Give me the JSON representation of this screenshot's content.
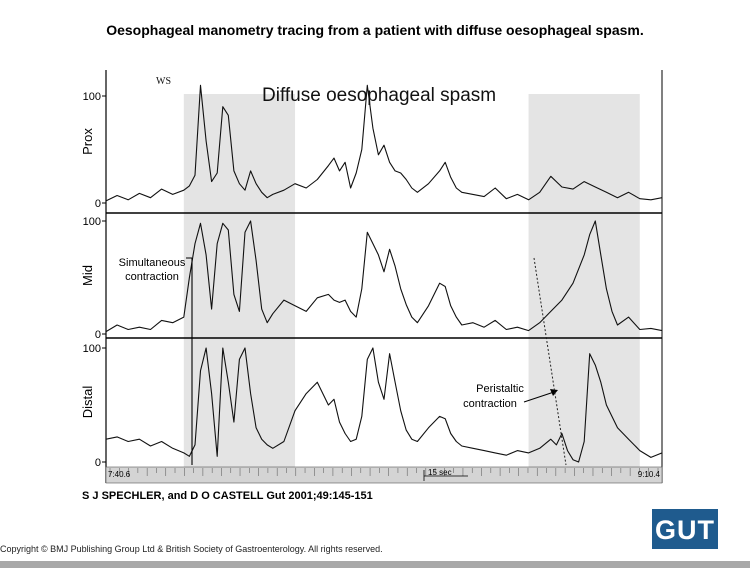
{
  "slide": {
    "title": "Oesophageal manometry tracing from a patient with diffuse oesophageal spasm.",
    "citation": "S J SPECHLER, and D O CASTELL Gut 2001;49:145-151",
    "copyright": "Copyright © BMJ Publishing Group Ltd & British Society of Gastroenterology. All rights reserved.",
    "logo_text": "GUT"
  },
  "colors": {
    "logo_bg": "#1f5b8e",
    "shading": "#e4e4e4",
    "trace": "#111111",
    "footer_bar": "#a8a8a8"
  },
  "chart_data": {
    "type": "line",
    "title": "Diffuse oesophageal spasm",
    "ylim": [
      0,
      100
    ],
    "yticks": [
      0,
      100
    ],
    "xlim": [
      0,
      100
    ],
    "time_labels": {
      "start": "7:40.6",
      "scale": "15 sec",
      "end": "9:10.4"
    },
    "marker_text": "WS",
    "shaded_regions": [
      [
        14,
        34
      ],
      [
        76,
        96
      ]
    ],
    "annotations": {
      "simultaneous": "Simultaneous\ncontraction",
      "peristaltic": "Peristaltic\ncontraction"
    },
    "channels": [
      {
        "name": "Prox",
        "x": [
          0,
          2,
          4,
          6,
          8,
          10,
          12,
          14,
          15,
          16,
          17,
          18,
          19,
          20,
          21,
          22,
          23,
          24,
          25,
          26,
          27,
          28,
          29,
          30,
          32,
          34,
          36,
          38,
          40,
          41,
          42,
          43,
          44,
          45,
          46,
          47,
          48,
          49,
          50,
          51,
          52,
          53,
          54,
          55,
          56,
          58,
          60,
          61,
          62,
          63,
          64,
          66,
          68,
          70,
          72,
          74,
          76,
          78,
          80,
          82,
          84,
          86,
          88,
          90,
          92,
          94,
          96,
          98,
          100
        ],
        "y": [
          2,
          7,
          3,
          9,
          5,
          13,
          8,
          12,
          16,
          26,
          110,
          58,
          20,
          28,
          90,
          82,
          30,
          18,
          12,
          30,
          18,
          10,
          5,
          8,
          12,
          18,
          14,
          22,
          35,
          42,
          30,
          38,
          14,
          28,
          50,
          110,
          70,
          45,
          54,
          38,
          30,
          28,
          22,
          14,
          10,
          18,
          30,
          38,
          24,
          14,
          10,
          8,
          6,
          14,
          4,
          8,
          3,
          10,
          25,
          15,
          13,
          20,
          15,
          10,
          5,
          10,
          4,
          3,
          5
        ]
      },
      {
        "name": "Mid",
        "x": [
          0,
          2,
          4,
          6,
          8,
          10,
          12,
          14,
          15,
          16,
          17,
          18,
          19,
          20,
          21,
          22,
          23,
          24,
          25,
          26,
          27,
          28,
          29,
          30,
          32,
          34,
          36,
          38,
          40,
          41,
          42,
          43,
          44,
          45,
          46,
          47,
          48,
          49,
          50,
          51,
          52,
          53,
          54,
          55,
          56,
          58,
          60,
          61,
          62,
          63,
          64,
          66,
          68,
          70,
          72,
          74,
          76,
          78,
          80,
          82,
          84,
          86,
          87,
          88,
          89,
          90,
          91,
          92,
          94,
          96,
          98,
          100
        ],
        "y": [
          2,
          8,
          4,
          6,
          4,
          12,
          10,
          15,
          50,
          80,
          98,
          70,
          22,
          80,
          98,
          92,
          35,
          20,
          90,
          100,
          65,
          22,
          10,
          18,
          30,
          25,
          20,
          32,
          35,
          30,
          28,
          30,
          20,
          15,
          40,
          90,
          80,
          70,
          55,
          75,
          60,
          40,
          26,
          15,
          10,
          25,
          45,
          42,
          25,
          15,
          8,
          10,
          6,
          12,
          4,
          6,
          3,
          10,
          20,
          30,
          45,
          70,
          88,
          100,
          70,
          40,
          20,
          8,
          15,
          4,
          5,
          3
        ]
      },
      {
        "name": "Distal",
        "x": [
          0,
          2,
          4,
          6,
          8,
          10,
          12,
          14,
          15,
          16,
          17,
          18,
          19,
          20,
          21,
          22,
          23,
          24,
          25,
          26,
          27,
          28,
          29,
          30,
          32,
          34,
          36,
          38,
          40,
          41,
          42,
          43,
          44,
          45,
          46,
          47,
          48,
          49,
          50,
          51,
          52,
          53,
          54,
          55,
          56,
          58,
          60,
          61,
          62,
          63,
          64,
          66,
          68,
          70,
          72,
          74,
          76,
          78,
          80,
          81,
          82,
          83,
          84,
          85,
          86,
          87,
          88,
          89,
          90,
          92,
          94,
          96,
          98,
          100
        ],
        "y": [
          20,
          22,
          18,
          20,
          14,
          18,
          12,
          8,
          5,
          15,
          80,
          100,
          60,
          5,
          100,
          70,
          35,
          90,
          100,
          60,
          30,
          20,
          15,
          12,
          18,
          45,
          60,
          70,
          50,
          55,
          35,
          25,
          18,
          20,
          40,
          90,
          100,
          70,
          55,
          95,
          70,
          45,
          28,
          20,
          18,
          30,
          40,
          38,
          25,
          18,
          14,
          12,
          10,
          8,
          6,
          10,
          8,
          12,
          20,
          15,
          25,
          10,
          2,
          0,
          18,
          95,
          85,
          70,
          50,
          30,
          20,
          10,
          4,
          8
        ]
      }
    ]
  }
}
